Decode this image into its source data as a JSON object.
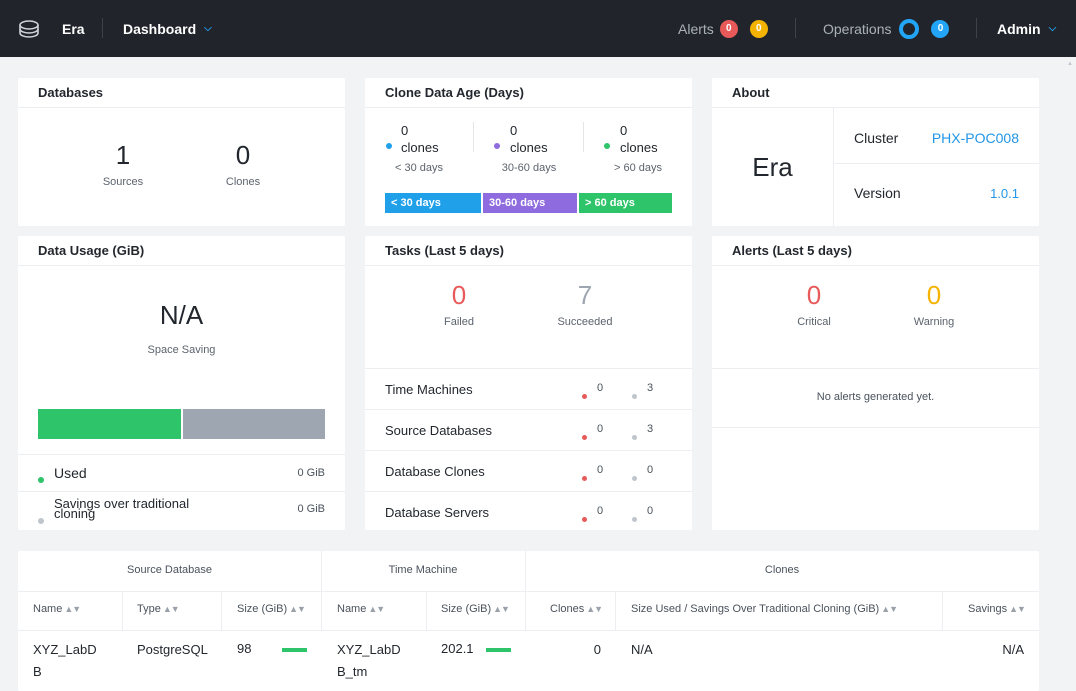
{
  "topbar": {
    "app_name": "Era",
    "dashboard_label": "Dashboard",
    "alerts_label": "Alerts",
    "alerts_critical_count": "0",
    "alerts_warning_count": "0",
    "operations_label": "Operations",
    "operations_count": "0",
    "user_label": "Admin"
  },
  "databases": {
    "title": "Databases",
    "sources_value": "1",
    "sources_label": "Sources",
    "clones_value": "0",
    "clones_label": "Clones"
  },
  "clone_age": {
    "title": "Clone Data Age (Days)",
    "groups": [
      {
        "value": "0",
        "unit": "clones",
        "range": "< 30 days",
        "color": "#1fa0e8"
      },
      {
        "value": "0",
        "unit": "clones",
        "range": "30-60 days",
        "color": "#8e6bde"
      },
      {
        "value": "0",
        "unit": "clones",
        "range": "> 60 days",
        "color": "#2ec46a"
      }
    ],
    "bar_labels": [
      "< 30 days",
      "30-60 days",
      "> 60 days"
    ]
  },
  "about": {
    "title": "About",
    "product": "Era",
    "cluster_label": "Cluster",
    "cluster_value": "PHX-POC008",
    "version_label": "Version",
    "version_value": "1.0.1"
  },
  "data_usage": {
    "title": "Data Usage (GiB)",
    "value": "N/A",
    "value_label": "Space Saving",
    "used_fraction": 0.5,
    "used_label": "Used",
    "used_value": "0 GiB",
    "savings_label": "Savings over traditional cloning",
    "savings_value": "0 GiB"
  },
  "tasks": {
    "title": "Tasks (Last 5 days)",
    "failed_value": "0",
    "failed_label": "Failed",
    "succeeded_value": "7",
    "succeeded_label": "Succeeded",
    "rows": [
      {
        "label": "Time Machines",
        "failed": "0",
        "succeeded": "3"
      },
      {
        "label": "Source Databases",
        "failed": "0",
        "succeeded": "3"
      },
      {
        "label": "Database Clones",
        "failed": "0",
        "succeeded": "0"
      },
      {
        "label": "Database Servers",
        "failed": "0",
        "succeeded": "0"
      }
    ]
  },
  "alerts_card": {
    "title": "Alerts (Last 5 days)",
    "critical_value": "0",
    "critical_label": "Critical",
    "warning_value": "0",
    "warning_label": "Warning",
    "empty_text": "No alerts generated yet."
  },
  "table": {
    "groups": [
      "Source Database",
      "Time Machine",
      "Clones"
    ],
    "columns": [
      "Name",
      "Type",
      "Size (GiB)",
      "Name",
      "Size (GiB)",
      "Clones",
      "Size Used / Savings Over Traditional Cloning (GiB)",
      "Savings"
    ],
    "rows": [
      {
        "src_name_1": "XYZ_LabD",
        "src_name_2": "B",
        "type": "PostgreSQL",
        "src_size": "98",
        "tm_name_1": "XYZ_LabD",
        "tm_name_2": "B_tm",
        "tm_size": "202.1",
        "clones": "0",
        "size_used": "N/A",
        "savings": "N/A"
      }
    ]
  },
  "colors": {
    "red": "#e85a5a",
    "orange": "#f5b301",
    "blue": "#22a5f7",
    "green": "#2ec46a",
    "gray": "#9ea6b1",
    "purple": "#8e6bde",
    "link": "#2296e6"
  }
}
